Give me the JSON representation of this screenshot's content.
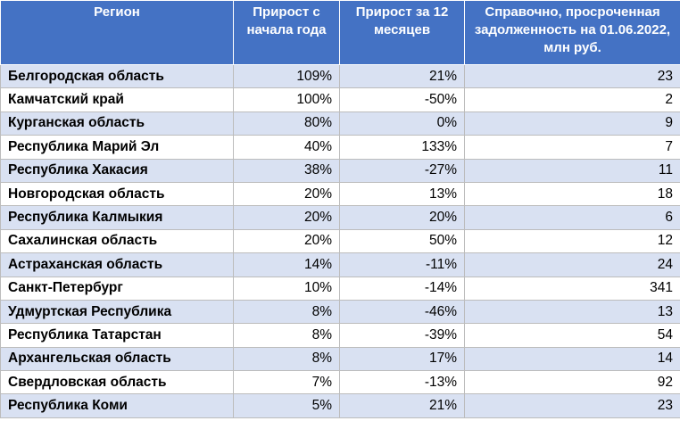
{
  "header": {
    "region": "Регион",
    "growth_ytd": "Прирост с начала года",
    "growth_12m": "Прирост за 12 месяцев",
    "overdue_debt": "Справочно, просроченная задолженность на 01.06.2022, млн руб."
  },
  "rows": [
    {
      "region": "Белгородская область",
      "growth_ytd": "109%",
      "growth_12m": "21%",
      "debt": "23"
    },
    {
      "region": "Камчатский край",
      "growth_ytd": "100%",
      "growth_12m": "-50%",
      "debt": "2"
    },
    {
      "region": "Курганская область",
      "growth_ytd": "80%",
      "growth_12m": "0%",
      "debt": "9"
    },
    {
      "region": "Республика Марий Эл",
      "growth_ytd": "40%",
      "growth_12m": "133%",
      "debt": "7"
    },
    {
      "region": "Республика Хакасия",
      "growth_ytd": "38%",
      "growth_12m": "-27%",
      "debt": "11"
    },
    {
      "region": "Новгородская область",
      "growth_ytd": "20%",
      "growth_12m": "13%",
      "debt": "18"
    },
    {
      "region": "Республика Калмыкия",
      "growth_ytd": "20%",
      "growth_12m": "20%",
      "debt": "6"
    },
    {
      "region": "Сахалинская область",
      "growth_ytd": "20%",
      "growth_12m": "50%",
      "debt": "12"
    },
    {
      "region": "Астраханская область",
      "growth_ytd": "14%",
      "growth_12m": "-11%",
      "debt": "24"
    },
    {
      "region": "Санкт-Петербург",
      "growth_ytd": "10%",
      "growth_12m": "-14%",
      "debt": "341"
    },
    {
      "region": "Удмуртская Республика",
      "growth_ytd": "8%",
      "growth_12m": "-46%",
      "debt": "13"
    },
    {
      "region": "Республика Татарстан",
      "growth_ytd": "8%",
      "growth_12m": "-39%",
      "debt": "54"
    },
    {
      "region": "Архангельская область",
      "growth_ytd": "8%",
      "growth_12m": "17%",
      "debt": "14"
    },
    {
      "region": "Свердловская область",
      "growth_ytd": "7%",
      "growth_12m": "-13%",
      "debt": "92"
    },
    {
      "region": "Республика Коми",
      "growth_ytd": "5%",
      "growth_12m": "21%",
      "debt": "23"
    }
  ]
}
